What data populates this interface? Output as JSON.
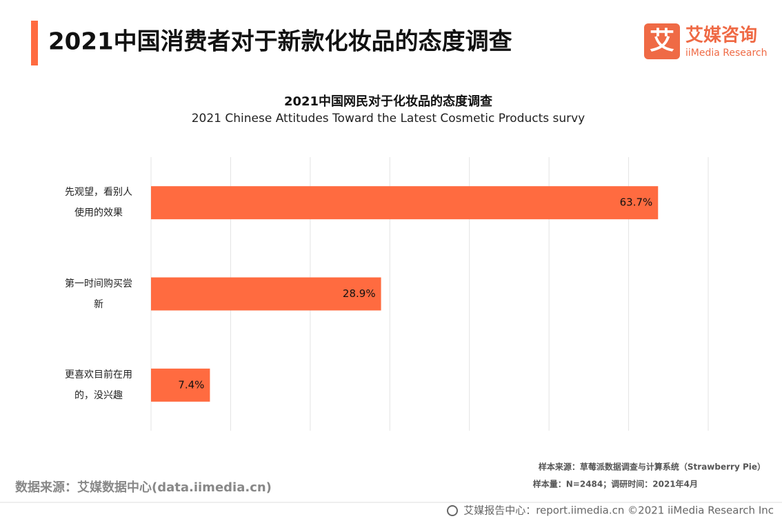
{
  "header": {
    "title": "2021中国消费者对于新款化妆品的态度调查",
    "logo_icon": "艾",
    "logo_name": "艾媒咨询",
    "logo_sub": "iiMedia Research"
  },
  "chart_data": {
    "type": "hbar",
    "title": "2021中国网民对于化妆品的态度调查",
    "subtitle": "2021 Chinese Attitudes Toward the Latest Cosmetic Products survy",
    "categories": [
      "先观望，看别人使用的效果",
      "第一时间购买尝新",
      "更喜欢目前在用的，没兴趣"
    ],
    "values": [
      63.7,
      28.9,
      7.4
    ],
    "value_labels": [
      "63.7%",
      "28.9%",
      "7.4%"
    ],
    "color": "#ff6b40",
    "xlim": [
      0,
      70
    ],
    "xticks": [
      0,
      10,
      20,
      30,
      40,
      50,
      60,
      70
    ],
    "grid": true
  },
  "footer": {
    "source": "数据来源：艾媒数据中心(data.iimedia.cn)",
    "sample_source": "样本来源：草莓派数据调查与计算系统（Strawberry Pie）",
    "sample_size": "样本量：N=2484；调研时间：2021年4月",
    "report": "艾媒报告中心：report.iimedia.cn  ©2021  iiMedia Research  Inc"
  }
}
